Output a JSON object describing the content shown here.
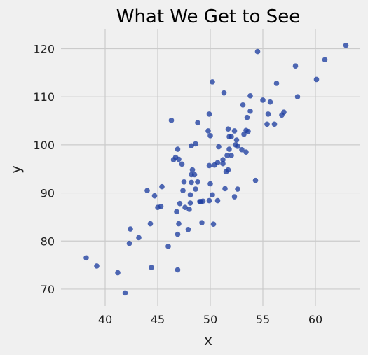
{
  "chart_data": {
    "type": "scatter",
    "title": "What We Get to See",
    "xlabel": "x",
    "ylabel": "y",
    "xlim": [
      35.8,
      64.2
    ],
    "ylim": [
      66.5,
      124.0
    ],
    "xticks": [
      40,
      45,
      50,
      55,
      60
    ],
    "yticks": [
      70,
      80,
      90,
      100,
      110,
      120
    ],
    "grid": true,
    "legend": "none",
    "point_color": "#1f3fa0",
    "background": "#f0f0f0",
    "points": [
      [
        38.2,
        76.5
      ],
      [
        39.2,
        74.8
      ],
      [
        41.2,
        73.4
      ],
      [
        41.9,
        69.2
      ],
      [
        42.3,
        79.5
      ],
      [
        42.4,
        82.5
      ],
      [
        43.2,
        80.7
      ],
      [
        44.0,
        90.5
      ],
      [
        44.3,
        83.6
      ],
      [
        44.4,
        74.5
      ],
      [
        44.7,
        89.4
      ],
      [
        45.0,
        87.0
      ],
      [
        45.3,
        87.2
      ],
      [
        45.4,
        91.3
      ],
      [
        46.0,
        78.9
      ],
      [
        46.3,
        105.1
      ],
      [
        46.5,
        96.9
      ],
      [
        46.7,
        97.4
      ],
      [
        46.8,
        86.1
      ],
      [
        46.9,
        74.0
      ],
      [
        46.9,
        81.4
      ],
      [
        46.9,
        99.1
      ],
      [
        47.0,
        83.6
      ],
      [
        47.0,
        97.0
      ],
      [
        47.1,
        87.8
      ],
      [
        47.3,
        96.0
      ],
      [
        47.4,
        90.5
      ],
      [
        47.5,
        92.3
      ],
      [
        47.6,
        87.0
      ],
      [
        47.9,
        82.4
      ],
      [
        48.0,
        86.6
      ],
      [
        48.1,
        87.9
      ],
      [
        48.1,
        89.6
      ],
      [
        48.2,
        93.8
      ],
      [
        48.2,
        92.2
      ],
      [
        48.2,
        99.8
      ],
      [
        48.3,
        94.8
      ],
      [
        48.5,
        93.8
      ],
      [
        48.6,
        100.2
      ],
      [
        48.6,
        90.8
      ],
      [
        48.8,
        104.6
      ],
      [
        48.8,
        92.3
      ],
      [
        49.0,
        88.2
      ],
      [
        49.1,
        88.2
      ],
      [
        49.2,
        83.8
      ],
      [
        49.3,
        88.3
      ],
      [
        49.8,
        102.9
      ],
      [
        49.9,
        106.4
      ],
      [
        49.9,
        88.4
      ],
      [
        49.9,
        95.7
      ],
      [
        50.0,
        101.9
      ],
      [
        50.0,
        91.9
      ],
      [
        50.2,
        89.6
      ],
      [
        50.2,
        113.1
      ],
      [
        50.3,
        83.5
      ],
      [
        50.4,
        95.8
      ],
      [
        50.7,
        96.3
      ],
      [
        50.7,
        88.4
      ],
      [
        50.8,
        99.6
      ],
      [
        51.2,
        96.1
      ],
      [
        51.2,
        96.9
      ],
      [
        51.3,
        110.8
      ],
      [
        51.4,
        90.9
      ],
      [
        51.5,
        94.4
      ],
      [
        51.6,
        97.8
      ],
      [
        51.7,
        103.3
      ],
      [
        51.7,
        94.8
      ],
      [
        51.8,
        101.7
      ],
      [
        51.8,
        99.1
      ],
      [
        52.0,
        101.7
      ],
      [
        52.0,
        97.8
      ],
      [
        52.3,
        102.9
      ],
      [
        52.3,
        89.2
      ],
      [
        52.4,
        100.0
      ],
      [
        52.5,
        101.0
      ],
      [
        52.6,
        99.7
      ],
      [
        52.6,
        90.8
      ],
      [
        53.0,
        99.0
      ],
      [
        53.1,
        108.3
      ],
      [
        53.2,
        102.2
      ],
      [
        53.4,
        103.0
      ],
      [
        53.4,
        98.5
      ],
      [
        53.5,
        105.7
      ],
      [
        53.6,
        102.8
      ],
      [
        53.8,
        110.2
      ],
      [
        53.8,
        107.0
      ],
      [
        54.3,
        92.6
      ],
      [
        54.5,
        119.4
      ],
      [
        55.0,
        109.3
      ],
      [
        55.4,
        104.3
      ],
      [
        55.5,
        106.4
      ],
      [
        55.7,
        108.9
      ],
      [
        56.1,
        104.3
      ],
      [
        56.3,
        112.8
      ],
      [
        56.8,
        106.2
      ],
      [
        57.0,
        106.8
      ],
      [
        58.1,
        116.4
      ],
      [
        58.3,
        110.0
      ],
      [
        60.1,
        113.6
      ],
      [
        60.9,
        117.7
      ],
      [
        62.9,
        120.7
      ]
    ]
  }
}
